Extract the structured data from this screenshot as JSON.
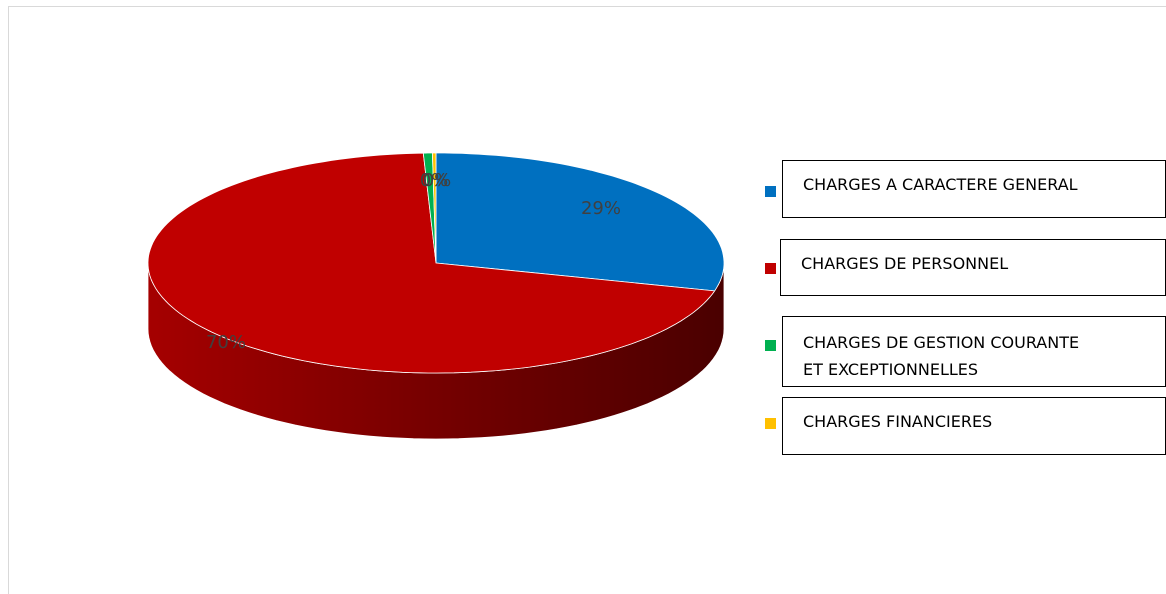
{
  "chart_data": {
    "type": "pie",
    "title": "",
    "slices": [
      {
        "label": "CHARGES A CARACTERE GENERAL",
        "value": 29,
        "display": "29%",
        "color": "#0070C0"
      },
      {
        "label": "CHARGES DE PERSONNEL",
        "value": 70,
        "display": "70%",
        "color": "#C00000"
      },
      {
        "label": "CHARGES DE GESTION COURANTE ET EXCEPTIONNELLES",
        "value": 0.5,
        "display": "0%",
        "color": "#00B050"
      },
      {
        "label": "CHARGES FINANCIERES",
        "value": 0.2,
        "display": "0%",
        "color": "#FFC000"
      }
    ],
    "legend_position": "right",
    "style": "3d"
  },
  "legend": {
    "item1": "CHARGES A CARACTERE GENERAL",
    "item2": "CHARGES DE PERSONNEL",
    "item3_line1": "CHARGES DE GESTION COURANTE",
    "item3_line2": "ET EXCEPTIONNELLES",
    "item4": "CHARGES FINANCIERES"
  }
}
